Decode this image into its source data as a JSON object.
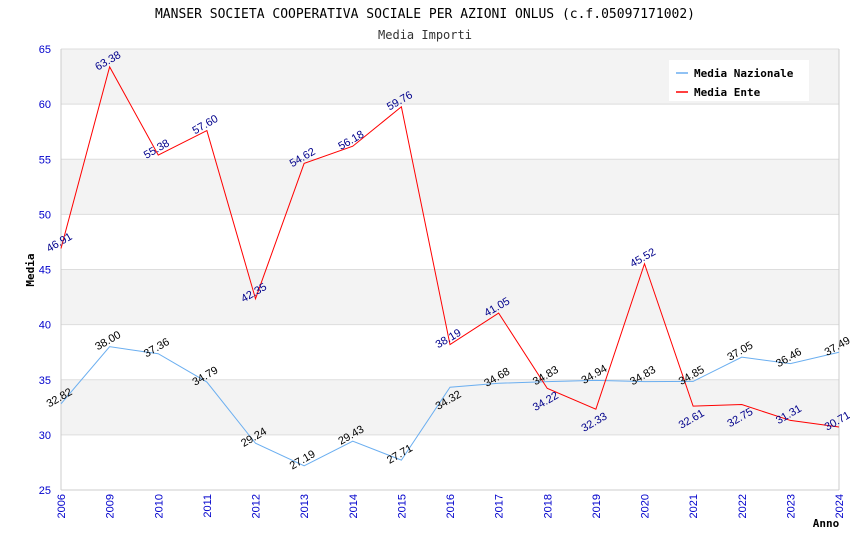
{
  "chart_data": {
    "type": "line",
    "title": "MANSER SOCIETA COOPERATIVA SOCIALE PER AZIONI ONLUS (c.f.05097171002)",
    "subtitle": "Media Importi",
    "xlabel": "Anno",
    "ylabel": "Media",
    "ylim": [
      25,
      65
    ],
    "yticks": [
      25,
      30,
      35,
      40,
      45,
      50,
      55,
      60,
      65
    ],
    "categories": [
      "2006",
      "2009",
      "2010",
      "2011",
      "2012",
      "2013",
      "2014",
      "2015",
      "2016",
      "2017",
      "2018",
      "2019",
      "2020",
      "2021",
      "2022",
      "2023",
      "2024"
    ],
    "series": [
      {
        "name": "Media Nazionale",
        "color": "#6aaef0",
        "label_color": "#000000",
        "values": [
          32.82,
          38.0,
          37.36,
          34.79,
          29.24,
          27.19,
          29.43,
          27.71,
          34.32,
          34.68,
          34.83,
          34.94,
          34.83,
          34.85,
          37.05,
          36.46,
          37.49
        ]
      },
      {
        "name": "Media Ente",
        "color": "#ff0000",
        "label_color": "#00008b",
        "values": [
          46.91,
          63.38,
          55.38,
          57.6,
          42.35,
          54.62,
          56.18,
          59.76,
          38.19,
          41.05,
          34.22,
          32.33,
          45.52,
          32.61,
          32.75,
          31.31,
          30.71
        ]
      }
    ],
    "grid": true,
    "legend_position": "top-right"
  }
}
